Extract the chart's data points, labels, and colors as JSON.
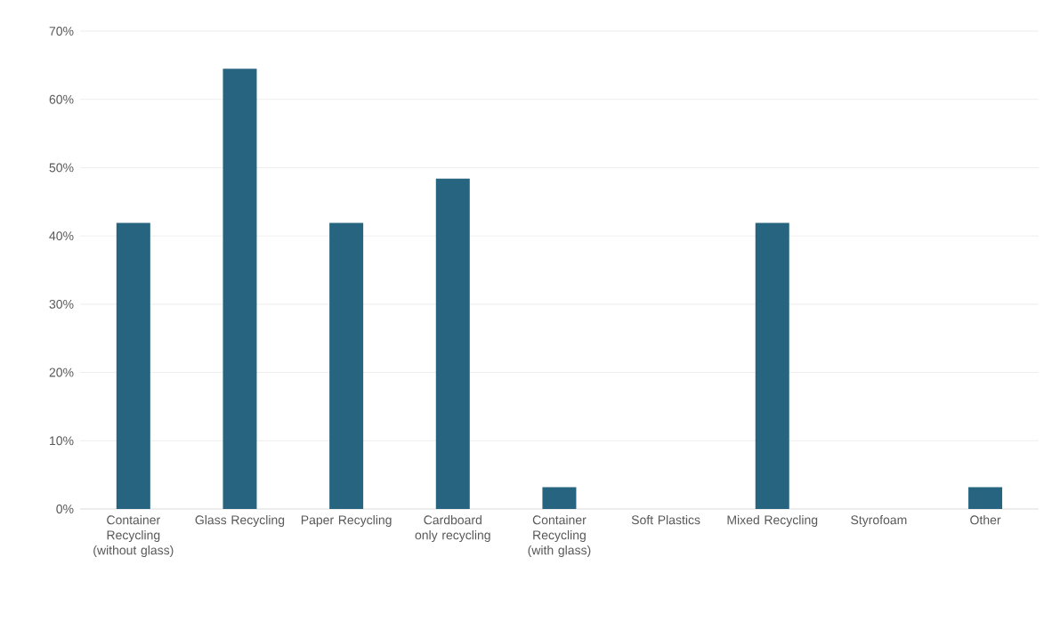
{
  "chart_data": {
    "type": "bar",
    "categories": [
      "Container Recycling (without glass)",
      "Glass Recycling",
      "Paper Recycling",
      "Cardboard only recycling",
      "Container Recycling (with glass)",
      "Soft Plastics",
      "Mixed Recycling",
      "Styrofoam",
      "Other"
    ],
    "values": [
      41.9,
      64.5,
      41.9,
      48.4,
      3.2,
      0,
      41.9,
      0,
      3.2
    ],
    "color": "#27647f",
    "ylim": [
      0,
      70
    ],
    "yticks": [
      {
        "value": 0,
        "label": "0%"
      },
      {
        "value": 10,
        "label": "10%"
      },
      {
        "value": 20,
        "label": "20%"
      },
      {
        "value": 30,
        "label": "30%"
      },
      {
        "value": 40,
        "label": "40%"
      },
      {
        "value": 50,
        "label": "50%"
      },
      {
        "value": 60,
        "label": "60%"
      },
      {
        "value": 70,
        "label": "70%"
      }
    ],
    "grid": "y"
  }
}
